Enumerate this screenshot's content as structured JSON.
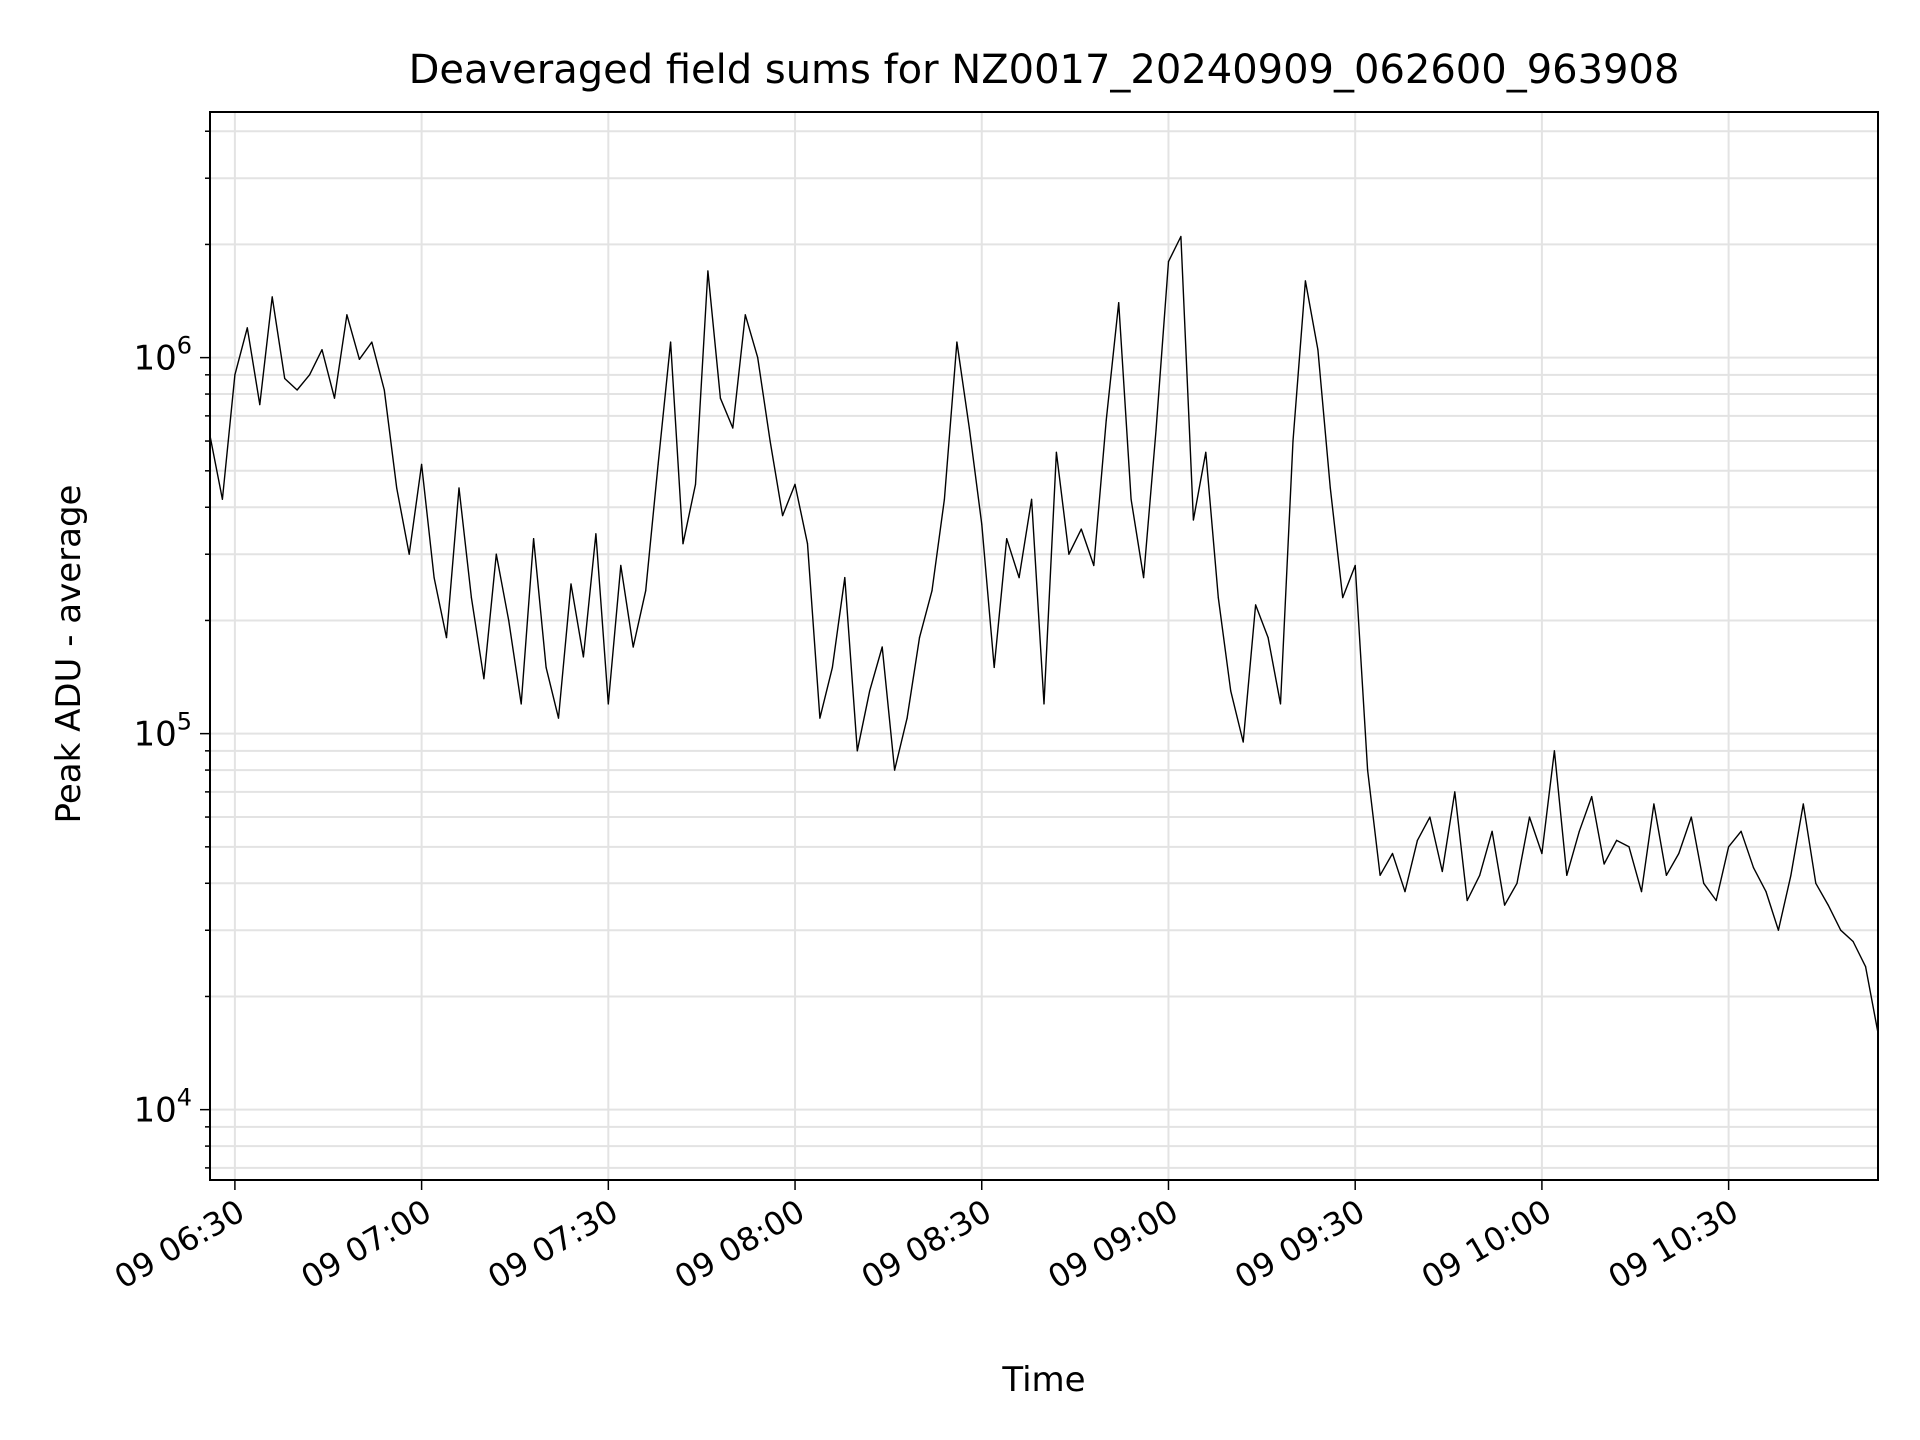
{
  "chart_data": {
    "type": "line",
    "title": "Deaveraged field sums for NZ0017_20240909_062600_963908",
    "xlabel": "Time",
    "ylabel": "Peak ADU - average",
    "x_scale": "time",
    "y_scale": "log",
    "xlim": [
      "2024-09-09 06:26",
      "2024-09-09 10:54"
    ],
    "ylim": [
      6500,
      4500000
    ],
    "grid": true,
    "minor_grid": true,
    "line_color": "#000000",
    "x_ticks": [
      {
        "t": "2024-09-09 06:30",
        "label": "09 06:30"
      },
      {
        "t": "2024-09-09 07:00",
        "label": "09 07:00"
      },
      {
        "t": "2024-09-09 07:30",
        "label": "09 07:30"
      },
      {
        "t": "2024-09-09 08:00",
        "label": "09 08:00"
      },
      {
        "t": "2024-09-09 08:30",
        "label": "09 08:30"
      },
      {
        "t": "2024-09-09 09:00",
        "label": "09 09:00"
      },
      {
        "t": "2024-09-09 09:30",
        "label": "09 09:30"
      },
      {
        "t": "2024-09-09 10:00",
        "label": "09 10:00"
      },
      {
        "t": "2024-09-09 10:30",
        "label": "09 10:30"
      }
    ],
    "y_ticks": [
      {
        "value": 10000,
        "base": "10",
        "exp": "4"
      },
      {
        "value": 100000,
        "base": "10",
        "exp": "5"
      },
      {
        "value": 1000000,
        "base": "10",
        "exp": "6"
      }
    ],
    "series": [
      {
        "x": [
          "2024-09-09 06:26",
          "2024-09-09 06:28",
          "2024-09-09 06:30",
          "2024-09-09 06:32",
          "2024-09-09 06:34",
          "2024-09-09 06:36",
          "2024-09-09 06:38",
          "2024-09-09 06:40",
          "2024-09-09 06:42",
          "2024-09-09 06:44",
          "2024-09-09 06:46",
          "2024-09-09 06:48",
          "2024-09-09 06:50",
          "2024-09-09 06:52",
          "2024-09-09 06:54",
          "2024-09-09 06:56",
          "2024-09-09 06:58",
          "2024-09-09 07:00",
          "2024-09-09 07:02",
          "2024-09-09 07:04",
          "2024-09-09 07:06",
          "2024-09-09 07:08",
          "2024-09-09 07:10",
          "2024-09-09 07:12",
          "2024-09-09 07:14",
          "2024-09-09 07:16",
          "2024-09-09 07:18",
          "2024-09-09 07:20",
          "2024-09-09 07:22",
          "2024-09-09 07:24",
          "2024-09-09 07:26",
          "2024-09-09 07:28",
          "2024-09-09 07:30",
          "2024-09-09 07:32",
          "2024-09-09 07:34",
          "2024-09-09 07:36",
          "2024-09-09 07:38",
          "2024-09-09 07:40",
          "2024-09-09 07:42",
          "2024-09-09 07:44",
          "2024-09-09 07:46",
          "2024-09-09 07:48",
          "2024-09-09 07:50",
          "2024-09-09 07:52",
          "2024-09-09 07:54",
          "2024-09-09 07:56",
          "2024-09-09 07:58",
          "2024-09-09 08:00",
          "2024-09-09 08:02",
          "2024-09-09 08:04",
          "2024-09-09 08:06",
          "2024-09-09 08:08",
          "2024-09-09 08:10",
          "2024-09-09 08:12",
          "2024-09-09 08:14",
          "2024-09-09 08:16",
          "2024-09-09 08:18",
          "2024-09-09 08:20",
          "2024-09-09 08:22",
          "2024-09-09 08:24",
          "2024-09-09 08:26",
          "2024-09-09 08:28",
          "2024-09-09 08:30",
          "2024-09-09 08:32",
          "2024-09-09 08:34",
          "2024-09-09 08:36",
          "2024-09-09 08:38",
          "2024-09-09 08:40",
          "2024-09-09 08:42",
          "2024-09-09 08:44",
          "2024-09-09 08:46",
          "2024-09-09 08:48",
          "2024-09-09 08:50",
          "2024-09-09 08:52",
          "2024-09-09 08:54",
          "2024-09-09 08:56",
          "2024-09-09 08:58",
          "2024-09-09 09:00",
          "2024-09-09 09:02",
          "2024-09-09 09:04",
          "2024-09-09 09:06",
          "2024-09-09 09:08",
          "2024-09-09 09:10",
          "2024-09-09 09:12",
          "2024-09-09 09:14",
          "2024-09-09 09:16",
          "2024-09-09 09:18",
          "2024-09-09 09:20",
          "2024-09-09 09:22",
          "2024-09-09 09:24",
          "2024-09-09 09:26",
          "2024-09-09 09:28",
          "2024-09-09 09:30",
          "2024-09-09 09:32",
          "2024-09-09 09:34",
          "2024-09-09 09:36",
          "2024-09-09 09:38",
          "2024-09-09 09:40",
          "2024-09-09 09:42",
          "2024-09-09 09:44",
          "2024-09-09 09:46",
          "2024-09-09 09:48",
          "2024-09-09 09:50",
          "2024-09-09 09:52",
          "2024-09-09 09:54",
          "2024-09-09 09:56",
          "2024-09-09 09:58",
          "2024-09-09 10:00",
          "2024-09-09 10:02",
          "2024-09-09 10:04",
          "2024-09-09 10:06",
          "2024-09-09 10:08",
          "2024-09-09 10:10",
          "2024-09-09 10:12",
          "2024-09-09 10:14",
          "2024-09-09 10:16",
          "2024-09-09 10:18",
          "2024-09-09 10:20",
          "2024-09-09 10:22",
          "2024-09-09 10:24",
          "2024-09-09 10:26",
          "2024-09-09 10:28",
          "2024-09-09 10:30",
          "2024-09-09 10:32",
          "2024-09-09 10:34",
          "2024-09-09 10:36",
          "2024-09-09 10:38",
          "2024-09-09 10:40",
          "2024-09-09 10:42",
          "2024-09-09 10:44",
          "2024-09-09 10:46",
          "2024-09-09 10:48",
          "2024-09-09 10:50",
          "2024-09-09 10:52",
          "2024-09-09 10:54"
        ],
        "values": [
          620000,
          420000,
          900000,
          1200000,
          750000,
          1450000,
          880000,
          820000,
          900000,
          1050000,
          780000,
          1300000,
          990000,
          1100000,
          820000,
          450000,
          300000,
          520000,
          260000,
          180000,
          450000,
          230000,
          140000,
          300000,
          200000,
          120000,
          330000,
          150000,
          110000,
          250000,
          160000,
          340000,
          120000,
          280000,
          170000,
          240000,
          520000,
          1100000,
          320000,
          460000,
          1700000,
          780000,
          650000,
          1300000,
          1000000,
          600000,
          380000,
          460000,
          320000,
          110000,
          150000,
          260000,
          90000,
          130000,
          170000,
          80000,
          110000,
          180000,
          240000,
          420000,
          1100000,
          650000,
          360000,
          150000,
          330000,
          260000,
          420000,
          120000,
          560000,
          300000,
          350000,
          280000,
          680000,
          1400000,
          420000,
          260000,
          640000,
          1800000,
          2100000,
          370000,
          560000,
          230000,
          130000,
          95000,
          220000,
          180000,
          120000,
          600000,
          1600000,
          1050000,
          450000,
          230000,
          280000,
          80000,
          42000,
          48000,
          38000,
          52000,
          60000,
          43000,
          70000,
          36000,
          42000,
          55000,
          35000,
          40000,
          60000,
          48000,
          90000,
          42000,
          55000,
          68000,
          45000,
          52000,
          50000,
          38000,
          65000,
          42000,
          48000,
          60000,
          40000,
          36000,
          50000,
          55000,
          44000,
          38000,
          30000,
          42000,
          65000,
          40000,
          35000,
          30000,
          28000,
          24000,
          16000
        ]
      }
    ]
  }
}
